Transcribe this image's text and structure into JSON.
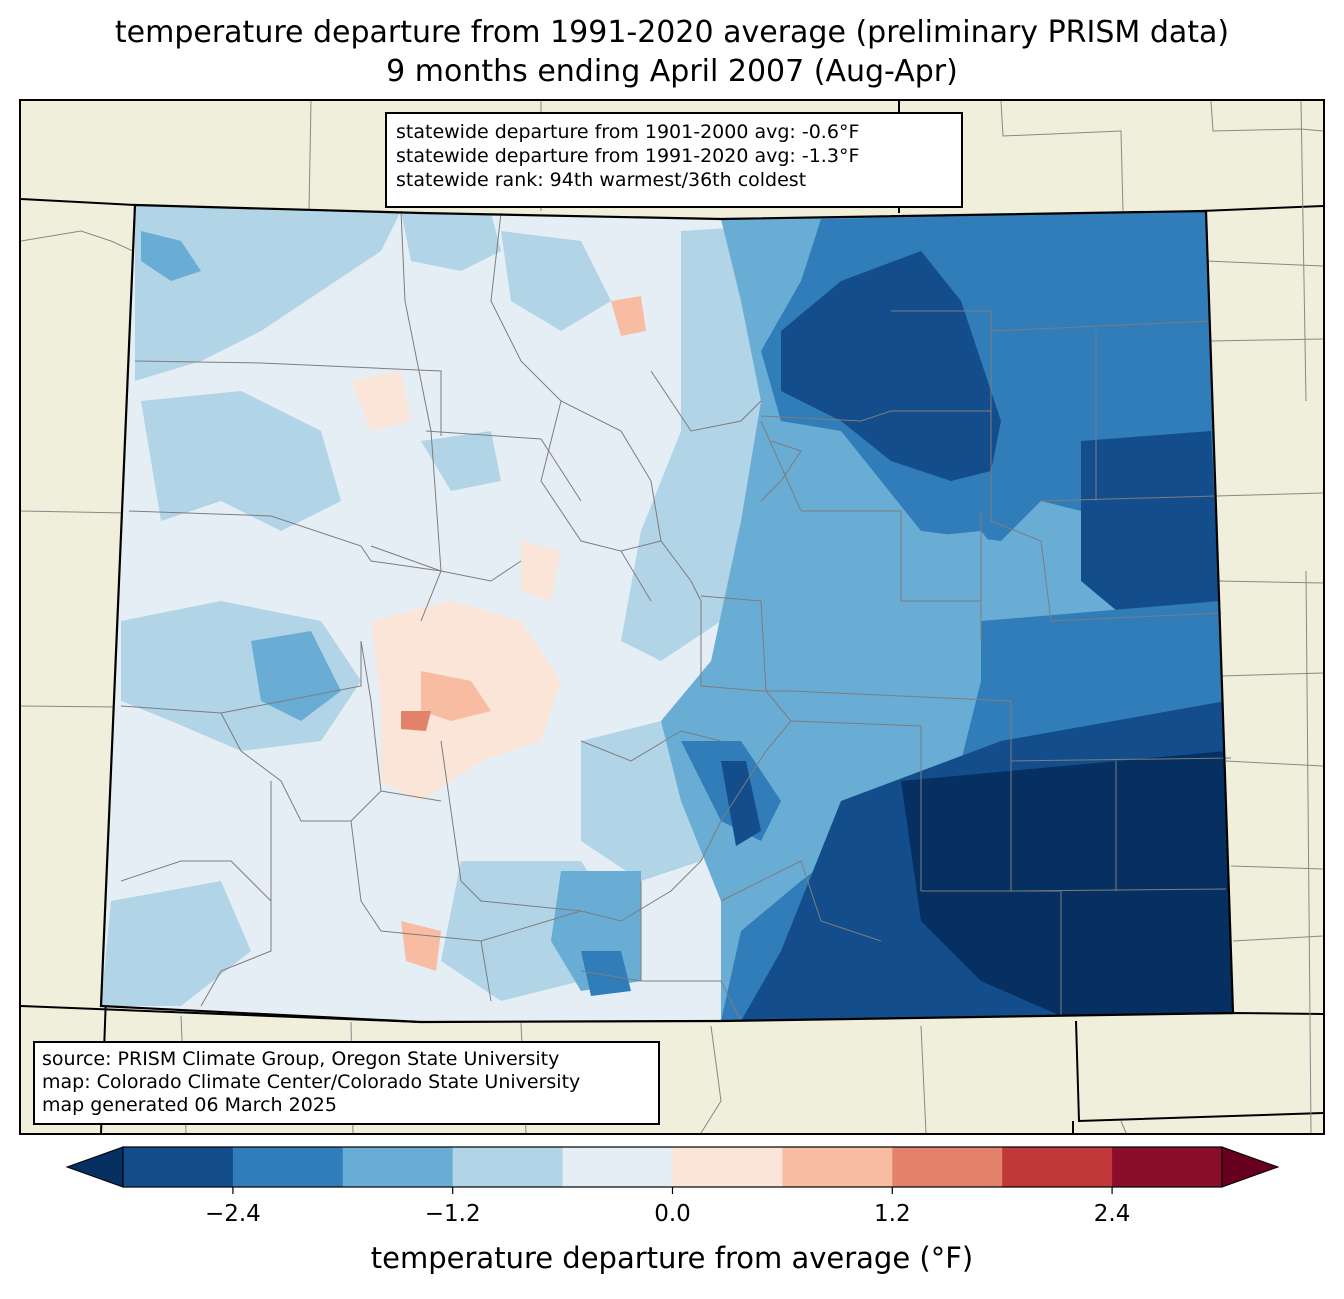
{
  "title": {
    "line1": "temperature departure from 1991-2020 average (preliminary PRISM data)",
    "line2": "9 months ending April 2007 (Aug-Apr)"
  },
  "stats": {
    "line1": "statewide departure from 1901-2000 avg: -0.6°F",
    "line2": "statewide departure from 1991-2020 avg: -1.3°F",
    "line3": "statewide rank: 94th warmest/36th coldest"
  },
  "source": {
    "line1": "source: PRISM Climate Group, Oregon State University",
    "line2": "map: Colorado Climate Center/Colorado State University",
    "line3": "map generated 06 March 2025"
  },
  "colorbar": {
    "label": "temperature departure from average (°F)",
    "ticks": [
      "−2.4",
      "−1.2",
      "0.0",
      "1.2",
      "2.4"
    ],
    "bins": [
      -3.0,
      -2.4,
      -1.8,
      -1.2,
      -0.6,
      0.0,
      0.6,
      1.2,
      1.8,
      2.4,
      3.0
    ],
    "under_color": "#053061",
    "over_color": "#67001f",
    "colors": [
      "#144d8c",
      "#307dba",
      "#6aadd4",
      "#b1d4e7",
      "#e6eef5",
      "#fbe4d8",
      "#f8bca3",
      "#e3826a",
      "#c0383a",
      "#8a0e29"
    ]
  },
  "colors": {
    "background_land": "#efefdc",
    "state_fill_base": "#e6eef5"
  }
}
